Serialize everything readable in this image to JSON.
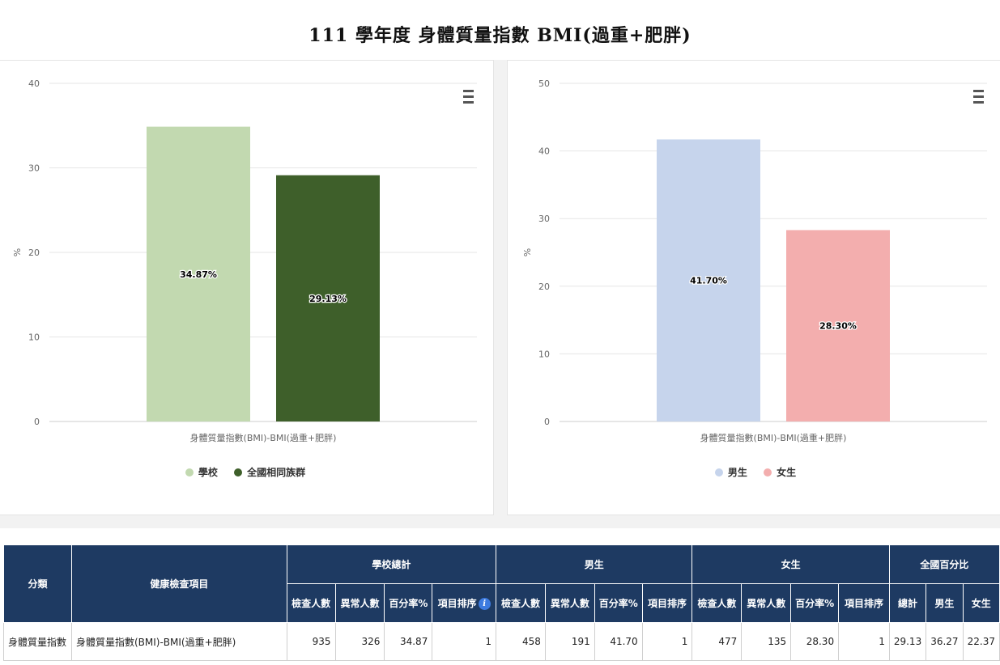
{
  "page": {
    "title": "111 學年度 身體質量指數 BMI(過重+肥胖)"
  },
  "chart_data": [
    {
      "type": "bar",
      "title": "",
      "ylabel": "%",
      "xlabel": "身體質量指數(BMI)-BMI(過重+肥胖)",
      "ylim": [
        0,
        40
      ],
      "yticks": [
        0,
        10,
        20,
        30,
        40
      ],
      "grid": true,
      "legend_position": "bottom",
      "series": [
        {
          "name": "學校",
          "value": 34.87,
          "label": "34.87%",
          "color": "#c2d9b0"
        },
        {
          "name": "全國相同族群",
          "value": 29.13,
          "label": "29.13%",
          "color": "#3e5f2a"
        }
      ]
    },
    {
      "type": "bar",
      "title": "",
      "ylabel": "%",
      "xlabel": "身體質量指數(BMI)-BMI(過重+肥胖)",
      "ylim": [
        0,
        50
      ],
      "yticks": [
        0,
        10,
        20,
        30,
        40,
        50
      ],
      "grid": true,
      "legend_position": "bottom",
      "series": [
        {
          "name": "男生",
          "value": 41.7,
          "label": "41.70%",
          "color": "#c6d4ec"
        },
        {
          "name": "女生",
          "value": 28.3,
          "label": "28.30%",
          "color": "#f3aeae"
        }
      ]
    }
  ],
  "menu_icon": "hamburger-icon",
  "table": {
    "headers": {
      "category": "分類",
      "item": "健康檢查項目",
      "school_total": "學校總計",
      "male": "男生",
      "female": "女生",
      "national": "全國百分比",
      "examined": "檢查人數",
      "abnormal": "異常人數",
      "percent": "百分率%",
      "rank": "項目排序",
      "total": "總計",
      "national_male": "男生",
      "national_female": "女生",
      "info_icon_glyph": "i"
    },
    "rows": [
      {
        "category": "身體質量指數",
        "item": "身體質量指數(BMI)-BMI(過重+肥胖)",
        "school_examined": "935",
        "school_abnormal": "326",
        "school_percent": "34.87",
        "school_rank": "1",
        "male_examined": "458",
        "male_abnormal": "191",
        "male_percent": "41.70",
        "male_rank": "1",
        "female_examined": "477",
        "female_abnormal": "135",
        "female_percent": "28.30",
        "female_rank": "1",
        "national_total": "29.13",
        "national_male": "36.27",
        "national_female": "22.37"
      }
    ]
  }
}
